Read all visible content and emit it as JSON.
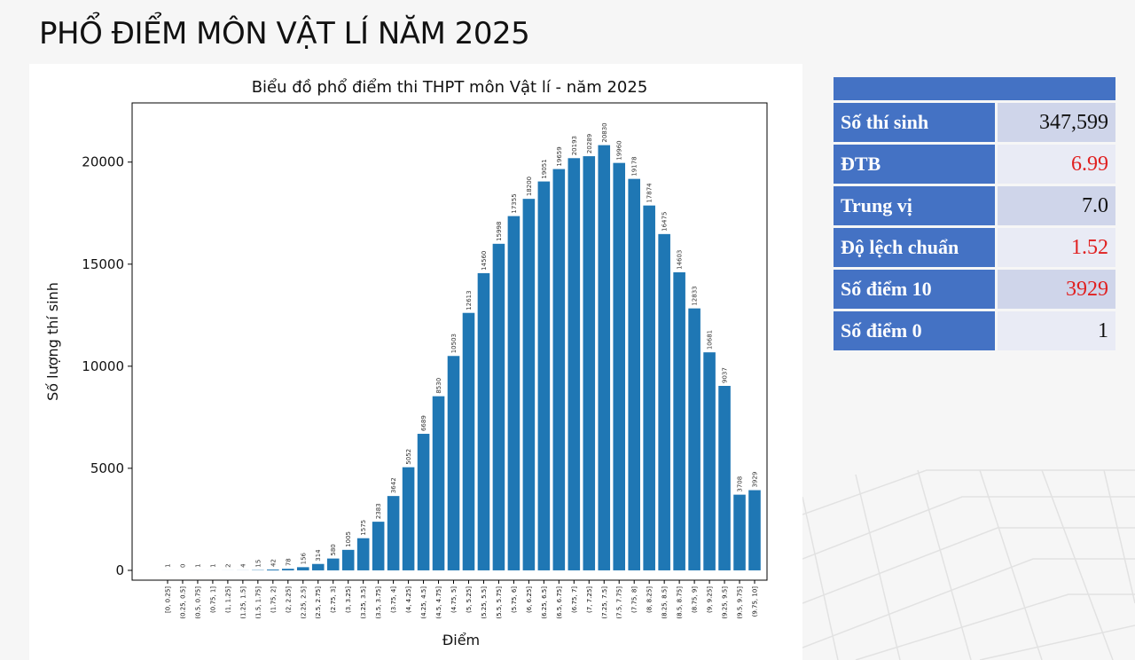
{
  "header": {
    "title": "PHỔ ĐIỂM MÔN VẬT LÍ NĂM 2025"
  },
  "chart_data": {
    "type": "bar",
    "title": "Biểu đồ phổ điểm thi THPT môn Vật lí - năm 2025",
    "x_label": "Điểm",
    "y_label": "Số lượng thí sinh",
    "color": "#1f77b4",
    "categories": [
      "[0, 0.25]",
      "(0.25, 0.5]",
      "(0.5, 0.75]",
      "(0.75, 1]",
      "(1, 1.25]",
      "(1.25, 1.5]",
      "(1.5, 1.75]",
      "(1.75, 2]",
      "(2, 2.25]",
      "(2.25, 2.5]",
      "(2.5, 2.75]",
      "(2.75, 3]",
      "(3, 3.25]",
      "(3.25, 3.5]",
      "(3.5, 3.75]",
      "(3.75, 4]",
      "(4, 4.25]",
      "(4.25, 4.5]",
      "(4.5, 4.75]",
      "(4.75, 5]",
      "(5, 5.25]",
      "(5.25, 5.5]",
      "(5.5, 5.75]",
      "(5.75, 6]",
      "(6, 6.25]",
      "(6.25, 6.5]",
      "(6.5, 6.75]",
      "(6.75, 7]",
      "(7, 7.25]",
      "(7.25, 7.5]",
      "(7.5, 7.75]",
      "(7.75, 8]",
      "(8, 8.25]",
      "(8.25, 8.5]",
      "(8.5, 8.75]",
      "(8.75, 9]",
      "(9, 9.25]",
      "(9.25, 9.5]",
      "(9.5, 9.75]",
      "(9.75, 10]"
    ],
    "values": [
      1,
      0,
      1,
      1,
      2,
      4,
      15,
      42,
      78,
      156,
      314,
      580,
      1005,
      1575,
      2383,
      3642,
      5052,
      6689,
      8530,
      10503,
      12613,
      14560,
      15998,
      17355,
      18200,
      19051,
      19659,
      20193,
      20289,
      20830,
      19960,
      19178,
      17874,
      16475,
      14603,
      12833,
      10681,
      9037,
      3708,
      3929
    ],
    "ylim": [
      -480,
      22900
    ],
    "yticks": [
      0,
      5000,
      10000,
      15000,
      20000
    ],
    "grid": false
  },
  "table": {
    "rows": [
      [
        "Số thí sinh",
        "347,599"
      ],
      [
        "ĐTB",
        "6.99"
      ],
      [
        "Trung vị",
        "7.0"
      ],
      [
        "Độ lệch chuẩn",
        "1.52"
      ],
      [
        "Số điểm 10",
        "3929"
      ],
      [
        "Số điểm 0",
        "1"
      ]
    ]
  }
}
